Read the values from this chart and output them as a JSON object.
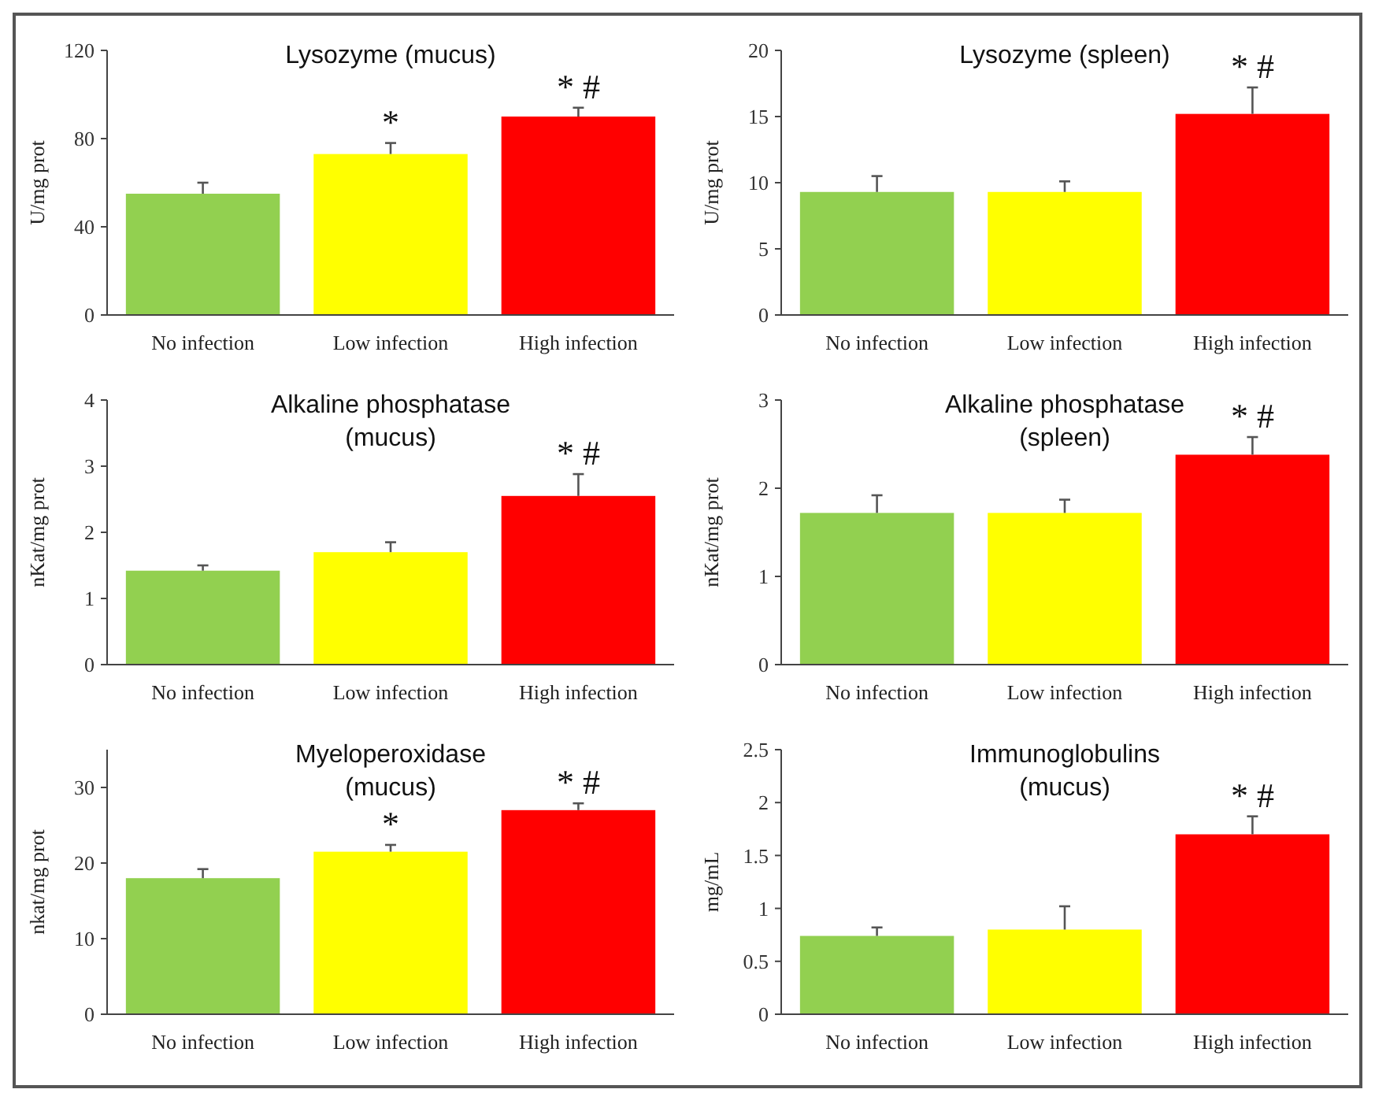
{
  "chart_data": [
    {
      "type": "bar",
      "title": "Lysozyme (mucus)",
      "ylabel": "U/mg prot",
      "categories": [
        "No infection",
        "Low infection",
        "High infection"
      ],
      "values": [
        55,
        73,
        90
      ],
      "colors": [
        "#92d050",
        "#ffff00",
        "#ff0000"
      ],
      "errors": [
        [
          55,
          60
        ],
        [
          73,
          78
        ],
        [
          90,
          94
        ]
      ],
      "ylim": [
        0,
        120
      ],
      "yticks": [
        0,
        40,
        80,
        120
      ],
      "annotations": [
        "*",
        "* #"
      ]
    },
    {
      "type": "bar",
      "title": "Lysozyme (spleen)",
      "ylabel": "U/mg prot",
      "categories": [
        "No infection",
        "Low infection",
        "High infection"
      ],
      "values": [
        9.3,
        9.3,
        15.2
      ],
      "colors": [
        "#92d050",
        "#ffff00",
        "#ff0000"
      ],
      "errors": [
        [
          9.3,
          10.5
        ],
        [
          9.3,
          10.1
        ],
        [
          15.2,
          17.2
        ]
      ],
      "ylim": [
        0,
        20
      ],
      "yticks": [
        0,
        5,
        10,
        15,
        20
      ],
      "annotations": [
        "* #"
      ]
    },
    {
      "type": "bar",
      "title": "Alkaline phosphatase (mucus)",
      "ylabel": "nKat/mg prot",
      "categories": [
        "No infection",
        "Low infection",
        "High infection"
      ],
      "values": [
        1.42,
        1.7,
        2.55
      ],
      "colors": [
        "#92d050",
        "#ffff00",
        "#ff0000"
      ],
      "errors": [
        [
          1.42,
          1.5
        ],
        [
          1.7,
          1.85
        ],
        [
          2.55,
          2.88
        ]
      ],
      "ylim": [
        0,
        4
      ],
      "yticks": [
        0,
        1,
        2,
        3,
        4
      ],
      "annotations": [
        "* #"
      ]
    },
    {
      "type": "bar",
      "title": "Alkaline phosphatase (spleen)",
      "ylabel": "nKat/mg prot",
      "categories": [
        "No infection",
        "Low infection",
        "High infection"
      ],
      "values": [
        1.72,
        1.72,
        2.38
      ],
      "colors": [
        "#92d050",
        "#ffff00",
        "#ff0000"
      ],
      "errors": [
        [
          1.72,
          1.92
        ],
        [
          1.72,
          1.87
        ],
        [
          2.38,
          2.58
        ]
      ],
      "ylim": [
        0,
        3
      ],
      "yticks": [
        0,
        1,
        2,
        3
      ],
      "annotations": [
        "* #"
      ]
    },
    {
      "type": "bar",
      "title": "Myeloperoxidase (mucus)",
      "ylabel": "nkat/mg prot",
      "categories": [
        "No infection",
        "Low infection",
        "High infection"
      ],
      "values": [
        18,
        21.5,
        27
      ],
      "colors": [
        "#92d050",
        "#ffff00",
        "#ff0000"
      ],
      "errors": [
        [
          18,
          19.2
        ],
        [
          21.5,
          22.4
        ],
        [
          27,
          27.9
        ]
      ],
      "ylim": [
        0,
        35
      ],
      "yticks": [
        0,
        10,
        20,
        30
      ],
      "annotations": [
        "*",
        "* #"
      ]
    },
    {
      "type": "bar",
      "title": "Immunoglobulins (mucus)",
      "ylabel": "mg/mL",
      "categories": [
        "No infection",
        "Low infection",
        "High infection"
      ],
      "values": [
        0.74,
        0.8,
        1.7
      ],
      "colors": [
        "#92d050",
        "#ffff00",
        "#ff0000"
      ],
      "errors": [
        [
          0.74,
          0.82
        ],
        [
          0.8,
          1.02
        ],
        [
          1.7,
          1.87
        ]
      ],
      "ylim": [
        0,
        2.5
      ],
      "yticks": [
        0,
        0.5,
        1,
        1.5,
        2,
        2.5
      ],
      "annotations": [
        "* #"
      ]
    }
  ]
}
